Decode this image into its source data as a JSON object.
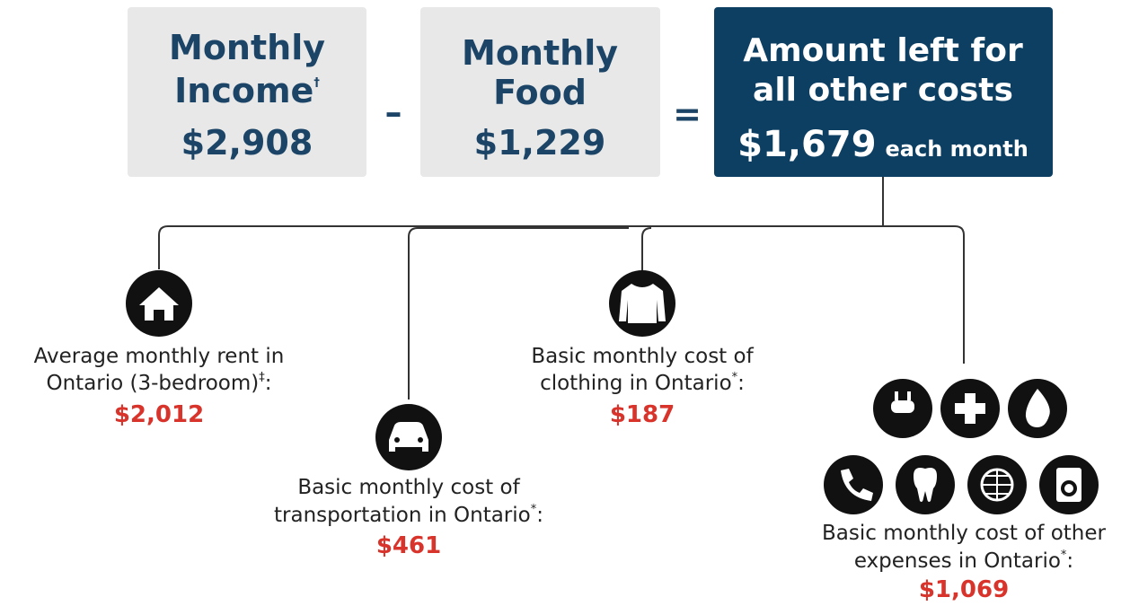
{
  "equation": {
    "income": {
      "lines": [
        "Monthly",
        "Income"
      ],
      "mark": "†",
      "amount": "$2,908"
    },
    "minus": "–",
    "food": {
      "lines": [
        "Monthly",
        "Food"
      ],
      "amount": "$1,229"
    },
    "equals": "=",
    "result": {
      "lines": [
        "Amount left for",
        "all other costs"
      ],
      "amount": "$1,679",
      "suffix": "each month"
    }
  },
  "items": [
    {
      "lines": [
        "Average monthly rent in",
        "Ontario (3-bedroom)"
      ],
      "mark": "‡",
      "end": ":",
      "amount": "$2,012"
    },
    {
      "lines": [
        "Basic monthly cost of",
        "transportation in Ontario"
      ],
      "mark": "*",
      "end": ":",
      "amount": "$461"
    },
    {
      "lines": [
        "Basic monthly cost of",
        "clothing in Ontario"
      ],
      "mark": "*",
      "end": ":",
      "amount": "$187"
    },
    {
      "lines": [
        "Basic monthly cost of other",
        "expenses in Ontario"
      ],
      "mark": "*",
      "end": ":",
      "amount": "$1,069"
    }
  ]
}
